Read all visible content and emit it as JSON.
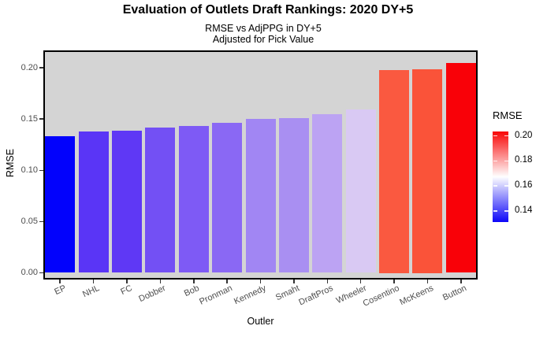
{
  "chart_data": {
    "type": "bar",
    "title": "Evaluation of Outlets Draft Rankings: 2020 DY+5",
    "subtitle_line1": "RMSE vs AdjPPG in DY+5",
    "subtitle_line2": "Adjusted for Pick Value",
    "xlabel": "Outler",
    "ylabel": "RMSE",
    "categories": [
      "EP",
      "NHL",
      "FC",
      "Dobber",
      "Bob",
      "Pronman",
      "Kennedy",
      "Smaht",
      "DraftPros",
      "Wheeler",
      "Cosentino",
      "McKeens",
      "Button"
    ],
    "values": [
      0.1335,
      0.138,
      0.1385,
      0.1415,
      0.1435,
      0.1465,
      0.15,
      0.1507,
      0.155,
      0.159,
      0.1977,
      0.1985,
      0.2048
    ],
    "bar_colors": [
      "#0202FC",
      "#5A35F6",
      "#5F38F5",
      "#7350F4",
      "#7E5AF5",
      "#8A68F4",
      "#A186F3",
      "#A98FF2",
      "#BCA3F3",
      "#D9C9F3",
      "#FA5940",
      "#FA5339",
      "#F90108"
    ],
    "yticks": [
      "0.00",
      "0.05",
      "0.10",
      "0.15",
      "0.20"
    ],
    "ytick_values": [
      0.0,
      0.05,
      0.1,
      0.15,
      0.2
    ],
    "ylim": [
      -0.007,
      0.217
    ],
    "grid": false,
    "panel_background": "#D4D4D4",
    "legend": {
      "title": "RMSE",
      "position": "right",
      "ticks": [
        "0.20",
        "0.18",
        "0.16",
        "0.14"
      ],
      "tick_values": [
        0.2,
        0.18,
        0.16,
        0.14
      ],
      "range": [
        0.1312,
        0.2035
      ],
      "gradient": {
        "low": "#0D06F8",
        "mid": "#FFFFFF",
        "high": "#F80606"
      }
    }
  }
}
